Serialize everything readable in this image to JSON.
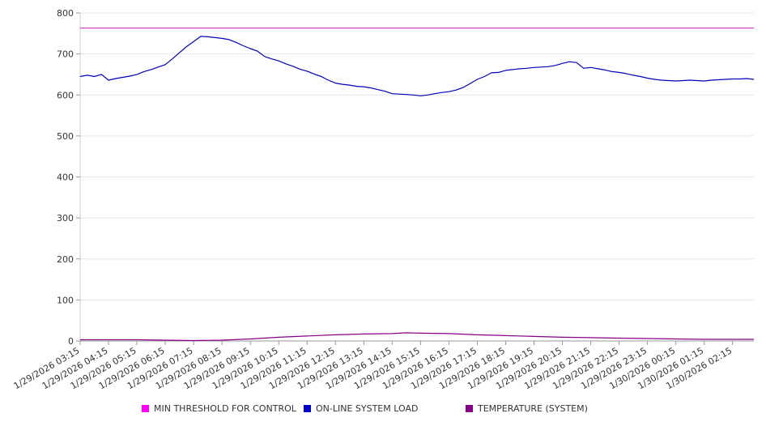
{
  "chart_data": {
    "type": "line",
    "title": "",
    "xlabel": "",
    "ylabel": "",
    "ylim": [
      0,
      800
    ],
    "yticks": [
      "0",
      "100",
      "200",
      "300",
      "400",
      "500",
      "600",
      "700",
      "800"
    ],
    "xtick_labels": [
      "1/29/2026 03:15",
      "1/29/2026 04:15",
      "1/29/2026 05:15",
      "1/29/2026 06:15",
      "1/29/2026 07:15",
      "1/29/2026 08:15",
      "1/29/2026 09:15",
      "1/29/2026 10:15",
      "1/29/2026 11:15",
      "1/29/2026 12:15",
      "1/29/2026 13:15",
      "1/29/2026 14:15",
      "1/29/2026 15:15",
      "1/29/2026 16:15",
      "1/29/2026 17:15",
      "1/29/2026 18:15",
      "1/29/2026 19:15",
      "1/29/2026 20:15",
      "1/29/2026 21:15",
      "1/29/2026 22:15",
      "1/29/2026 23:15",
      "1/30/2026 00:15",
      "1/30/2026 01:15",
      "1/30/2026 02:15"
    ],
    "x_end": "1/30/2026 03:00",
    "grid": true,
    "legend_position": "bottom",
    "series": [
      {
        "name": "MIN THRESHOLD FOR CONTROL",
        "color": "#cc33cc",
        "points": [
          [
            "1/29/2026 03:15",
            763
          ],
          [
            "1/30/2026 03:00",
            763
          ]
        ]
      },
      {
        "name": "ON-LINE SYSTEM LOAD",
        "color": "#0000bb",
        "points": [
          [
            "1/29/2026 03:15",
            645
          ],
          [
            "1/29/2026 03:30",
            648
          ],
          [
            "1/29/2026 03:45",
            645
          ],
          [
            "1/29/2026 04:00",
            650
          ],
          [
            "1/29/2026 04:15",
            636
          ],
          [
            "1/29/2026 04:30",
            640
          ],
          [
            "1/29/2026 04:45",
            643
          ],
          [
            "1/29/2026 05:00",
            646
          ],
          [
            "1/29/2026 05:15",
            650
          ],
          [
            "1/29/2026 05:30",
            657
          ],
          [
            "1/29/2026 05:45",
            662
          ],
          [
            "1/29/2026 06:00",
            668
          ],
          [
            "1/29/2026 06:15",
            674
          ],
          [
            "1/29/2026 06:30",
            688
          ],
          [
            "1/29/2026 06:45",
            703
          ],
          [
            "1/29/2026 07:00",
            718
          ],
          [
            "1/29/2026 07:15",
            730
          ],
          [
            "1/29/2026 07:30",
            743
          ],
          [
            "1/29/2026 07:45",
            742
          ],
          [
            "1/29/2026 08:00",
            740
          ],
          [
            "1/29/2026 08:15",
            738
          ],
          [
            "1/29/2026 08:30",
            735
          ],
          [
            "1/29/2026 08:45",
            728
          ],
          [
            "1/29/2026 09:00",
            720
          ],
          [
            "1/29/2026 09:15",
            713
          ],
          [
            "1/29/2026 09:30",
            707
          ],
          [
            "1/29/2026 09:45",
            694
          ],
          [
            "1/29/2026 10:00",
            688
          ],
          [
            "1/29/2026 10:15",
            683
          ],
          [
            "1/29/2026 10:30",
            676
          ],
          [
            "1/29/2026 10:45",
            670
          ],
          [
            "1/29/2026 11:00",
            663
          ],
          [
            "1/29/2026 11:15",
            658
          ],
          [
            "1/29/2026 11:30",
            651
          ],
          [
            "1/29/2026 11:45",
            645
          ],
          [
            "1/29/2026 12:00",
            636
          ],
          [
            "1/29/2026 12:15",
            629
          ],
          [
            "1/29/2026 12:30",
            626
          ],
          [
            "1/29/2026 12:45",
            624
          ],
          [
            "1/29/2026 13:00",
            621
          ],
          [
            "1/29/2026 13:15",
            620
          ],
          [
            "1/29/2026 13:30",
            617
          ],
          [
            "1/29/2026 13:45",
            613
          ],
          [
            "1/29/2026 14:00",
            609
          ],
          [
            "1/29/2026 14:15",
            603
          ],
          [
            "1/29/2026 14:30",
            602
          ],
          [
            "1/29/2026 14:45",
            601
          ],
          [
            "1/29/2026 15:00",
            600
          ],
          [
            "1/29/2026 15:15",
            598
          ],
          [
            "1/29/2026 15:30",
            600
          ],
          [
            "1/29/2026 15:45",
            603
          ],
          [
            "1/29/2026 16:00",
            606
          ],
          [
            "1/29/2026 16:15",
            608
          ],
          [
            "1/29/2026 16:30",
            612
          ],
          [
            "1/29/2026 16:45",
            618
          ],
          [
            "1/29/2026 17:00",
            628
          ],
          [
            "1/29/2026 17:15",
            638
          ],
          [
            "1/29/2026 17:30",
            645
          ],
          [
            "1/29/2026 17:45",
            654
          ],
          [
            "1/29/2026 18:00",
            655
          ],
          [
            "1/29/2026 18:15",
            660
          ],
          [
            "1/29/2026 18:30",
            662
          ],
          [
            "1/29/2026 18:45",
            664
          ],
          [
            "1/29/2026 19:00",
            665
          ],
          [
            "1/29/2026 19:15",
            667
          ],
          [
            "1/29/2026 19:30",
            668
          ],
          [
            "1/29/2026 19:45",
            669
          ],
          [
            "1/29/2026 20:00",
            672
          ],
          [
            "1/29/2026 20:15",
            677
          ],
          [
            "1/29/2026 20:30",
            681
          ],
          [
            "1/29/2026 20:45",
            679
          ],
          [
            "1/29/2026 21:00",
            665
          ],
          [
            "1/29/2026 21:15",
            667
          ],
          [
            "1/29/2026 21:30",
            664
          ],
          [
            "1/29/2026 21:45",
            661
          ],
          [
            "1/29/2026 22:00",
            657
          ],
          [
            "1/29/2026 22:15",
            655
          ],
          [
            "1/29/2026 22:30",
            652
          ],
          [
            "1/29/2026 22:45",
            648
          ],
          [
            "1/29/2026 23:00",
            645
          ],
          [
            "1/29/2026 23:15",
            641
          ],
          [
            "1/29/2026 23:30",
            638
          ],
          [
            "1/29/2026 23:45",
            636
          ],
          [
            "1/30/2026 00:00",
            635
          ],
          [
            "1/30/2026 00:15",
            634
          ],
          [
            "1/30/2026 00:30",
            635
          ],
          [
            "1/30/2026 00:45",
            636
          ],
          [
            "1/30/2026 01:00",
            635
          ],
          [
            "1/30/2026 01:15",
            634
          ],
          [
            "1/30/2026 01:30",
            636
          ],
          [
            "1/30/2026 01:45",
            637
          ],
          [
            "1/30/2026 02:00",
            638
          ],
          [
            "1/30/2026 02:15",
            639
          ],
          [
            "1/30/2026 02:30",
            639
          ],
          [
            "1/30/2026 02:45",
            640
          ],
          [
            "1/30/2026 03:00",
            638
          ]
        ]
      },
      {
        "name": "TEMPERATURE (SYSTEM)",
        "color": "#880088",
        "points": [
          [
            "1/29/2026 03:15",
            3
          ],
          [
            "1/29/2026 05:15",
            3
          ],
          [
            "1/29/2026 07:15",
            1
          ],
          [
            "1/29/2026 08:15",
            2
          ],
          [
            "1/29/2026 09:15",
            5
          ],
          [
            "1/29/2026 10:15",
            9
          ],
          [
            "1/29/2026 11:15",
            12
          ],
          [
            "1/29/2026 12:15",
            15
          ],
          [
            "1/29/2026 13:15",
            17
          ],
          [
            "1/29/2026 14:15",
            18
          ],
          [
            "1/29/2026 14:45",
            20
          ],
          [
            "1/29/2026 15:15",
            19
          ],
          [
            "1/29/2026 16:15",
            18
          ],
          [
            "1/29/2026 17:15",
            15
          ],
          [
            "1/29/2026 18:15",
            13
          ],
          [
            "1/29/2026 19:15",
            11
          ],
          [
            "1/29/2026 20:15",
            9
          ],
          [
            "1/29/2026 21:15",
            8
          ],
          [
            "1/29/2026 22:15",
            7
          ],
          [
            "1/29/2026 23:15",
            6
          ],
          [
            "1/30/2026 00:15",
            5
          ],
          [
            "1/30/2026 01:15",
            4
          ],
          [
            "1/30/2026 03:00",
            4
          ]
        ]
      }
    ]
  }
}
